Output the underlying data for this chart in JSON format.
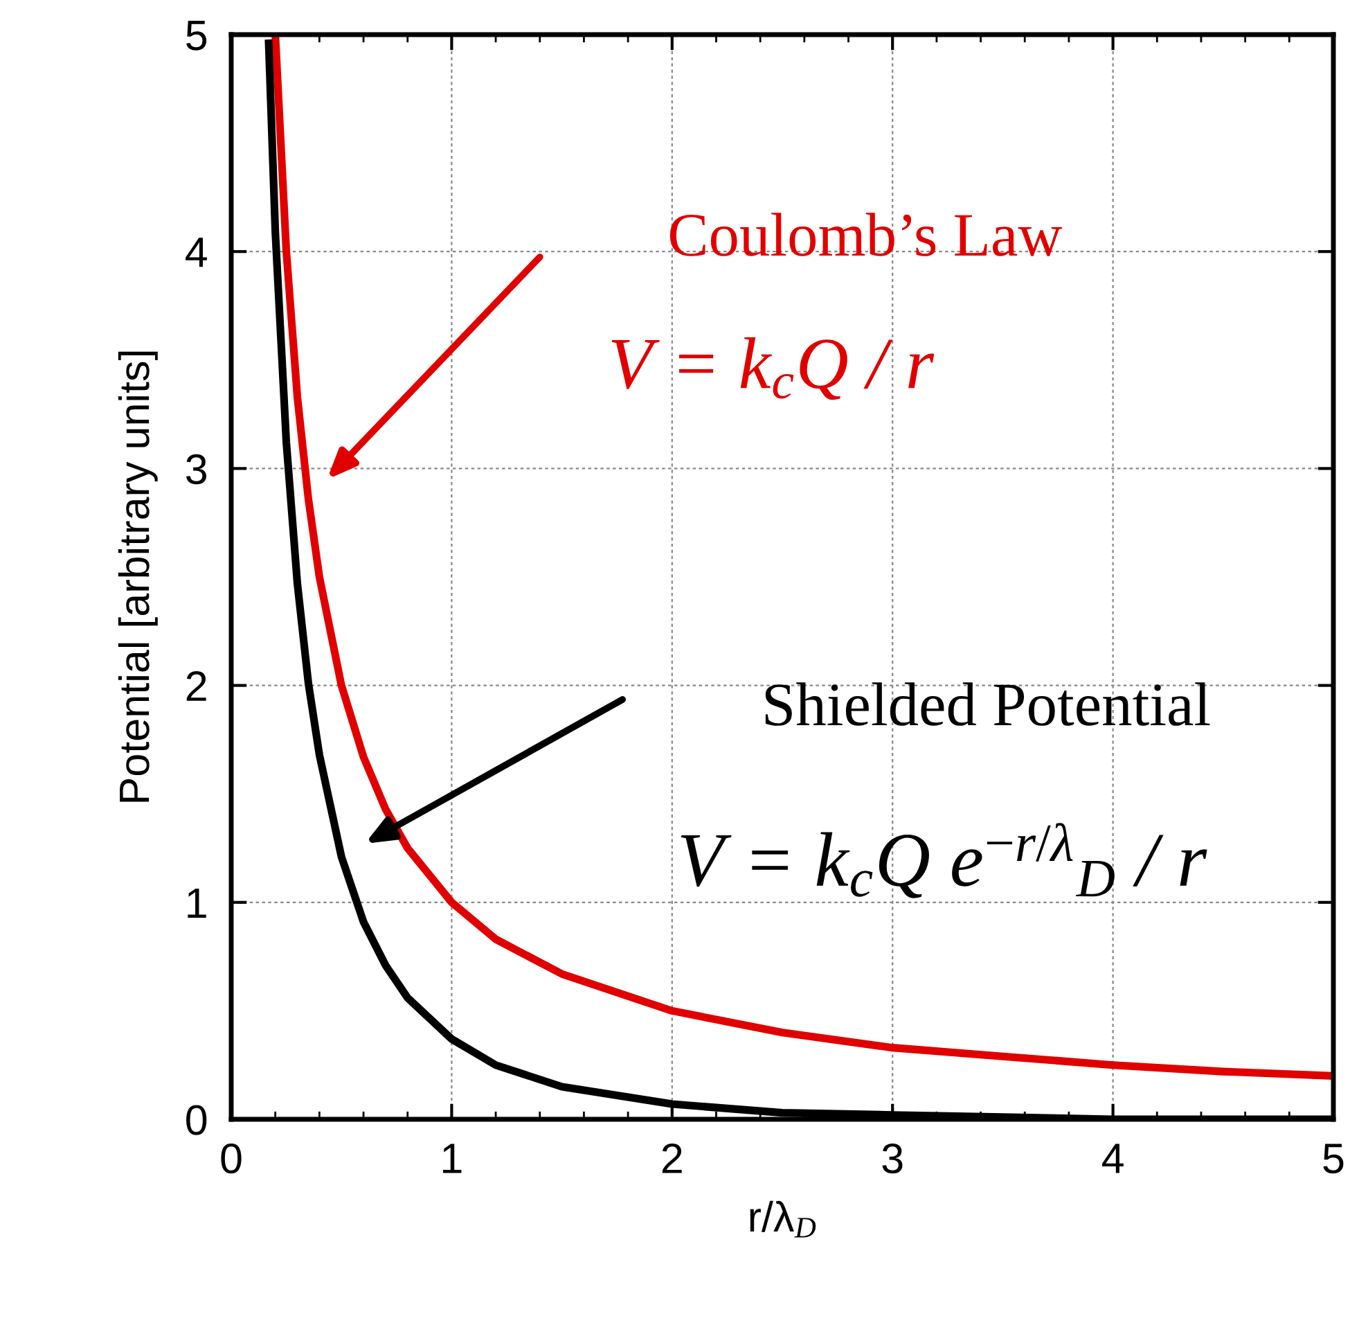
{
  "chart_data": {
    "type": "line",
    "xlabel": "r/λ$_{D}$",
    "ylabel": "Potential [arbitrary units]",
    "x": [
      0.17,
      0.2,
      0.25,
      0.3,
      0.35,
      0.4,
      0.5,
      0.6,
      0.7,
      0.8,
      1,
      1.2,
      1.5,
      2,
      2.5,
      3,
      3.5,
      4,
      4.5,
      5
    ],
    "series": [
      {
        "color": "#e00000",
        "values": [
          null,
          5,
          4,
          3.33,
          2.86,
          2.5,
          2,
          1.67,
          1.43,
          1.25,
          1,
          0.83,
          0.67,
          0.5,
          0.4,
          0.33,
          0.29,
          0.25,
          0.22,
          0.2
        ]
      },
      {
        "color": "#000000",
        "values": [
          4.96,
          4.09,
          3.12,
          2.47,
          2.01,
          1.68,
          1.21,
          0.91,
          0.71,
          0.56,
          0.37,
          0.25,
          0.15,
          0.07,
          0.03,
          0.02,
          0.01,
          0,
          0,
          0
        ]
      }
    ],
    "annotations": [
      "Coulomb’s Law",
      "V = k$_{c}$Q / r",
      "Shielded Potential",
      "V = k$_{c}$Q e$^{−r/λ}$$_{D}$ / r"
    ],
    "xlim": [
      0,
      5
    ],
    "ylim": [
      0,
      5
    ],
    "xticks": [
      0,
      1,
      2,
      3,
      4,
      5
    ],
    "yticks": [
      0,
      1,
      2,
      3,
      4,
      5
    ],
    "grid": true,
    "marker": "none",
    "line_style": "solid"
  }
}
